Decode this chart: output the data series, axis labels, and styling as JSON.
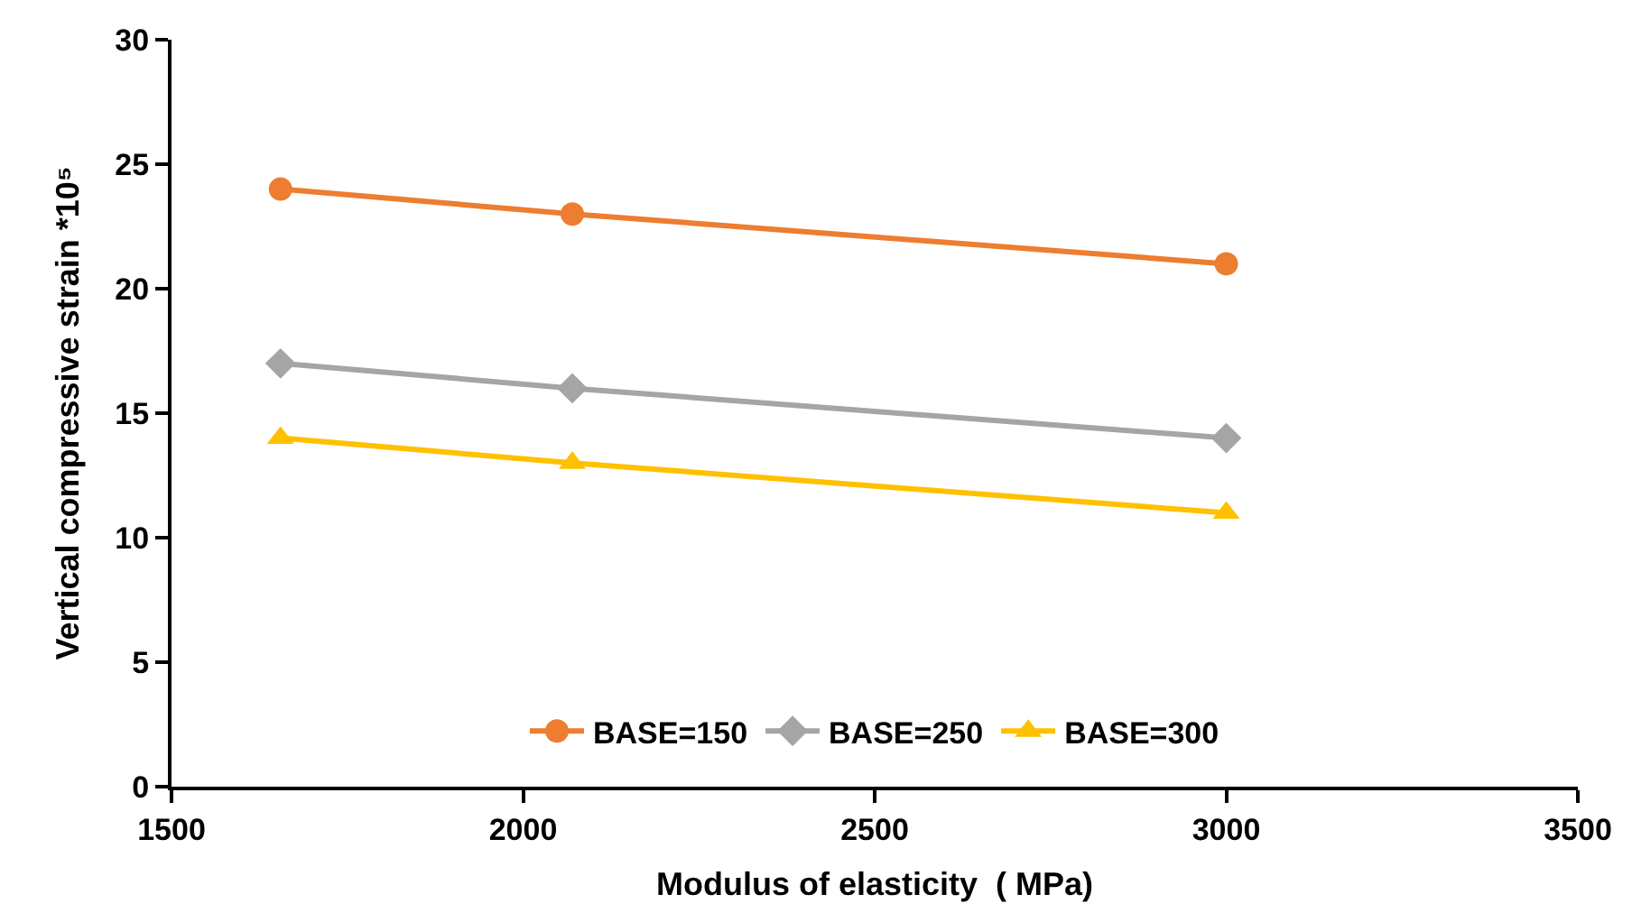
{
  "chart_data": {
    "type": "line",
    "xlabel": "Modulus of elasticity  ( MPa)",
    "ylabel": "Vertical compressive strain *10⁵",
    "x": [
      1655,
      2070,
      3000
    ],
    "series": [
      {
        "name": "BASE=150",
        "color": "#ed7d31",
        "marker": "circle",
        "values": [
          24,
          23,
          21
        ]
      },
      {
        "name": "BASE=250",
        "color": "#a5a5a5",
        "marker": "diamond",
        "values": [
          17,
          16,
          14
        ]
      },
      {
        "name": "BASE=300",
        "color": "#ffc000",
        "marker": "triangle",
        "values": [
          14,
          13,
          11
        ]
      }
    ],
    "xlim": [
      1500,
      3500
    ],
    "xticks": [
      1500,
      2000,
      2500,
      3000,
      3500
    ],
    "ylim": [
      0,
      30
    ],
    "yticks": [
      0,
      5,
      10,
      15,
      20,
      25,
      30
    ],
    "legend": "bottom",
    "line_style": "solid"
  }
}
